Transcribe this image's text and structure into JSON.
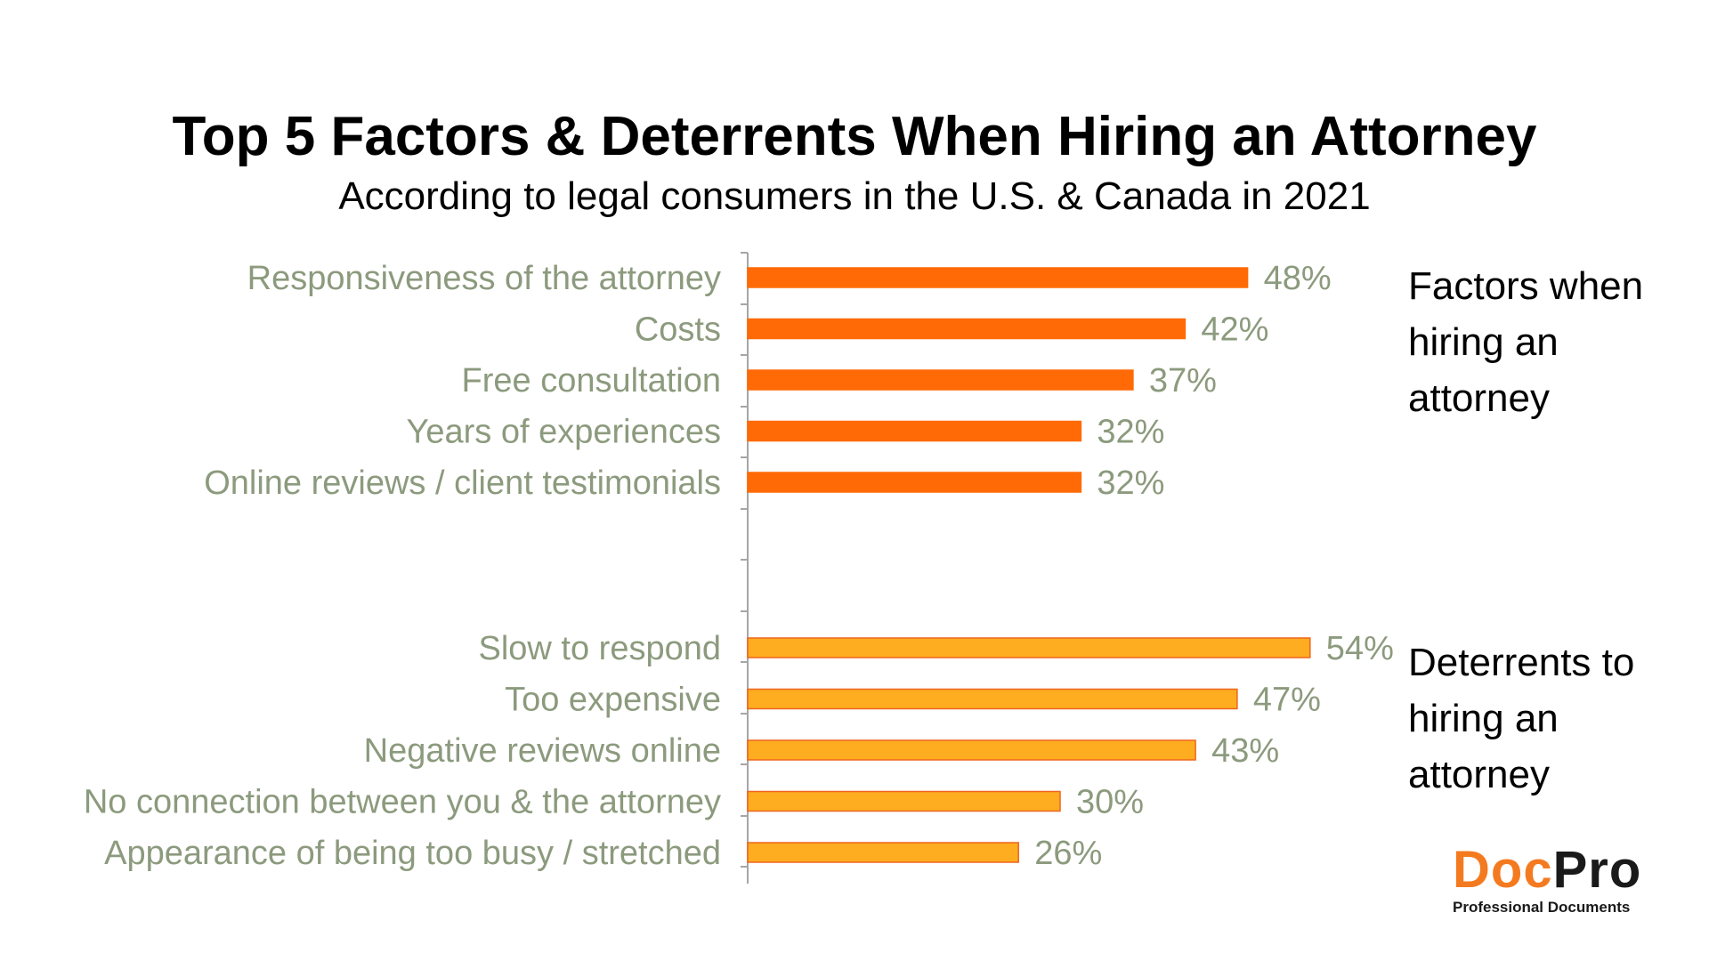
{
  "chart_data": {
    "type": "bar",
    "orientation": "horizontal",
    "title": "Top 5 Factors & Deterrents When Hiring an Attorney",
    "subtitle": "According to legal consumers in the U.S. & Canada in 2021",
    "value_suffix": "%",
    "xlim": [
      0,
      60
    ],
    "grid": false,
    "groups": [
      {
        "name": "Factors when hiring an attorney",
        "name_lines": [
          "Factors when",
          "hiring an",
          "attorney"
        ],
        "color": "#ff6a06",
        "stroke": "#ff6a06",
        "categories": [
          "Responsiveness of the attorney",
          "Costs",
          "Free consultation",
          "Years of experiences",
          "Online reviews / client testimonials"
        ],
        "values": [
          48,
          42,
          37,
          32,
          32
        ]
      },
      {
        "name": "Deterrents to hiring an attorney",
        "name_lines": [
          "Deterrents to",
          "hiring an",
          "attorney"
        ],
        "color": "#fdad1f",
        "stroke": "#f0651e",
        "categories": [
          "Slow to respond",
          "Too expensive",
          "Negative reviews online",
          "No connection between you & the attorney",
          "Appearance of being too busy / stretched"
        ],
        "values": [
          54,
          47,
          43,
          30,
          26
        ]
      }
    ]
  },
  "logo": {
    "doc": "Doc",
    "pro": "Pro",
    "tagline": "Professional Documents"
  }
}
